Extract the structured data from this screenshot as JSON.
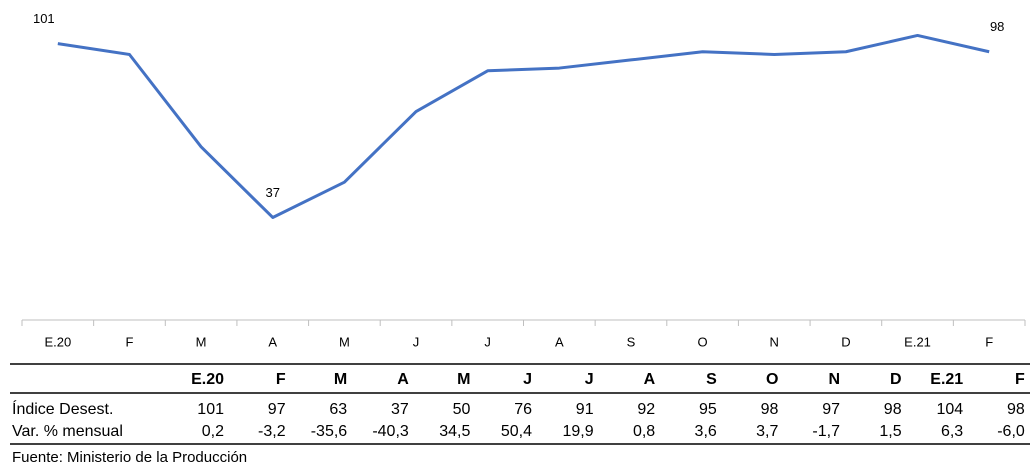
{
  "chart_data": {
    "type": "line",
    "categories": [
      "E.20",
      "F",
      "M",
      "A",
      "M",
      "J",
      "J",
      "A",
      "S",
      "O",
      "N",
      "D",
      "E.21",
      "F"
    ],
    "series": [
      {
        "name": "Índice Desest.",
        "color": "#4472c4",
        "values": [
          101,
          97,
          63,
          37,
          50,
          76,
          91,
          92,
          95,
          98,
          97,
          98,
          104,
          98
        ],
        "value_labels": [
          "101",
          null,
          null,
          "37",
          null,
          null,
          null,
          null,
          null,
          null,
          null,
          null,
          null,
          "98"
        ]
      }
    ],
    "ylim": [
      0,
      120
    ]
  },
  "table": {
    "header": [
      "E.20",
      "F",
      "M",
      "A",
      "M",
      "J",
      "J",
      "A",
      "S",
      "O",
      "N",
      "D",
      "E.21",
      "F"
    ],
    "rows": [
      [
        "Índice Desest.",
        "101",
        "97",
        "63",
        "37",
        "50",
        "76",
        "91",
        "92",
        "95",
        "98",
        "97",
        "98",
        "104",
        "98"
      ],
      [
        "Var. % mensual",
        "0,2",
        "-3,2",
        "-35,6",
        "-40,3",
        "34,5",
        "50,4",
        "19,9",
        "0,8",
        "3,6",
        "3,7",
        "-1,7",
        "1,5",
        "6,3",
        "-6,0"
      ]
    ]
  },
  "source": "Fuente: Ministerio de la Producción"
}
